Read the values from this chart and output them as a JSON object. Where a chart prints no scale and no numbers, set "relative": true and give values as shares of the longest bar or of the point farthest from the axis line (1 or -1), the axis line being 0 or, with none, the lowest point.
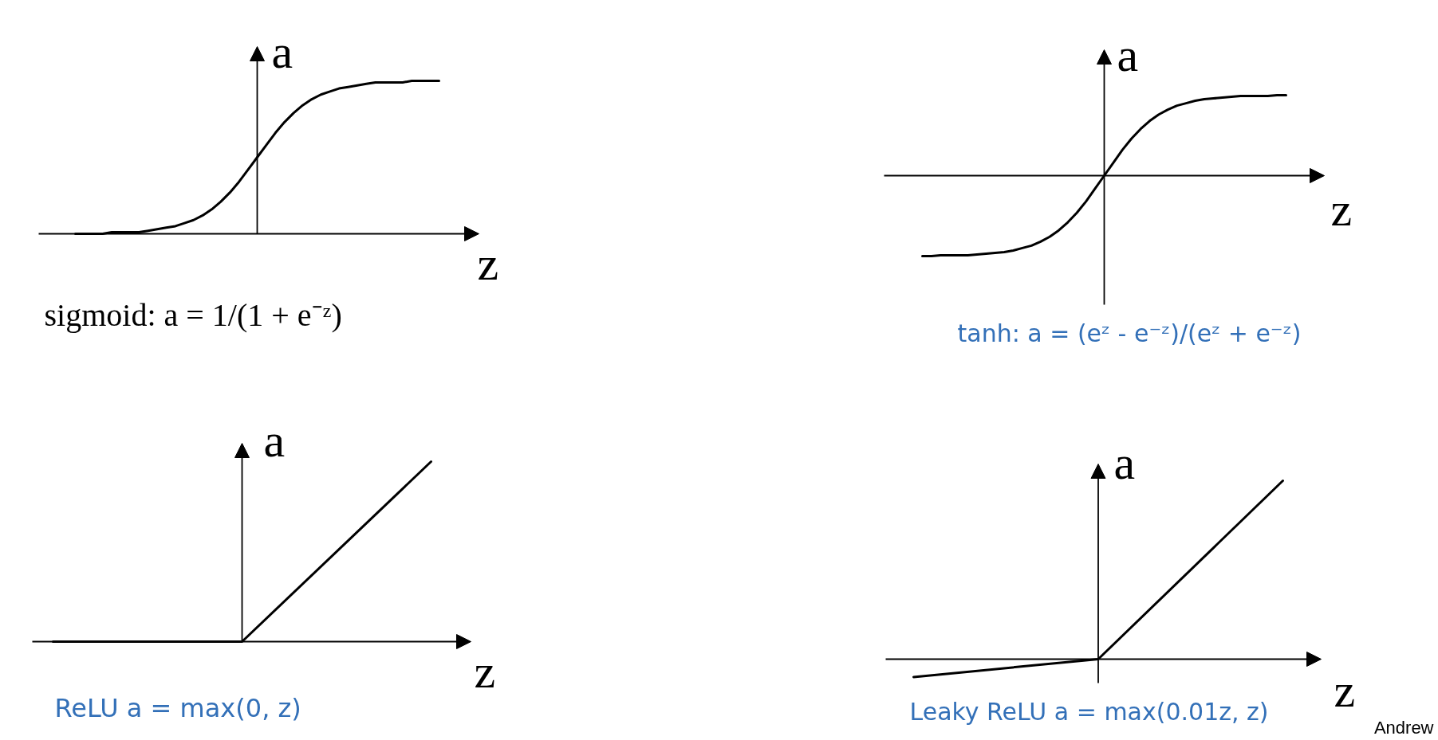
{
  "chart_data": [
    {
      "type": "line",
      "relative": true,
      "xlabel": "z",
      "ylabel": "a",
      "line_style": "solid",
      "categories": [
        null,
        null,
        null,
        null,
        null,
        null,
        null,
        null,
        null,
        null,
        null,
        null,
        null,
        null,
        null,
        null,
        null,
        null,
        null,
        null,
        null,
        null,
        null,
        null,
        null,
        null,
        null,
        null,
        null,
        null,
        null,
        null,
        null,
        null,
        null,
        null,
        null,
        null,
        null,
        null,
        null
      ],
      "series": [
        {
          "color": "#000000",
          "values": [
            0.0,
            0.0,
            0.0,
            0.0,
            0.01,
            0.01,
            0.01,
            0.01,
            0.02,
            0.03,
            0.04,
            0.05,
            0.07,
            0.09,
            0.12,
            0.16,
            0.21,
            0.27,
            0.34,
            0.42,
            0.5,
            0.58,
            0.66,
            0.73,
            0.79,
            0.84,
            0.88,
            0.91,
            0.93,
            0.95,
            0.96,
            0.97,
            0.98,
            0.99,
            0.99,
            0.99,
            0.99,
            1.0,
            1.0,
            1.0,
            1.0
          ]
        }
      ],
      "annotations": [
        "sigmoid: a = 1/(1 + e⁻ᶻ)"
      ]
    },
    {
      "type": "line",
      "relative": true,
      "xlabel": "z",
      "ylabel": "a",
      "line_style": "solid",
      "categories": [
        null,
        null,
        null,
        null,
        null,
        null,
        null,
        null,
        null,
        null,
        null,
        null,
        null,
        null,
        null,
        null,
        null,
        null,
        null,
        null,
        null,
        null,
        null,
        null,
        null,
        null,
        null,
        null,
        null,
        null,
        null,
        null,
        null,
        null,
        null,
        null,
        null,
        null,
        null,
        null,
        null
      ],
      "series": [
        {
          "color": "#000000",
          "values": [
            -1.0,
            -1.0,
            -0.99,
            -0.99,
            -0.99,
            -0.99,
            -0.98,
            -0.97,
            -0.96,
            -0.95,
            -0.93,
            -0.9,
            -0.87,
            -0.82,
            -0.76,
            -0.68,
            -0.58,
            -0.46,
            -0.32,
            -0.16,
            0.0,
            0.16,
            0.32,
            0.46,
            0.58,
            0.68,
            0.76,
            0.82,
            0.87,
            0.9,
            0.93,
            0.95,
            0.96,
            0.97,
            0.98,
            0.99,
            0.99,
            0.99,
            0.99,
            1.0,
            1.0
          ]
        }
      ],
      "annotations": [
        "tanh: a = (eᶻ - e⁻ᶻ)/(eᶻ + e⁻ᶻ)"
      ]
    },
    {
      "type": "line",
      "relative": true,
      "xlabel": "z",
      "ylabel": "a",
      "line_style": "solid",
      "categories": [
        null,
        null,
        null
      ],
      "series": [
        {
          "color": "#000000",
          "values": [
            0,
            0,
            1
          ]
        }
      ],
      "annotations": [
        "ReLU a = max(0, z)"
      ]
    },
    {
      "type": "line",
      "relative": true,
      "xlabel": "z",
      "ylabel": "a",
      "line_style": "solid",
      "categories": [
        null,
        null,
        null
      ],
      "series": [
        {
          "color": "#000000",
          "values": [
            -0.1,
            0,
            1
          ]
        }
      ],
      "annotations": [
        "Leaky ReLU a = max(0.01z, z)",
        "Andrew"
      ]
    }
  ]
}
